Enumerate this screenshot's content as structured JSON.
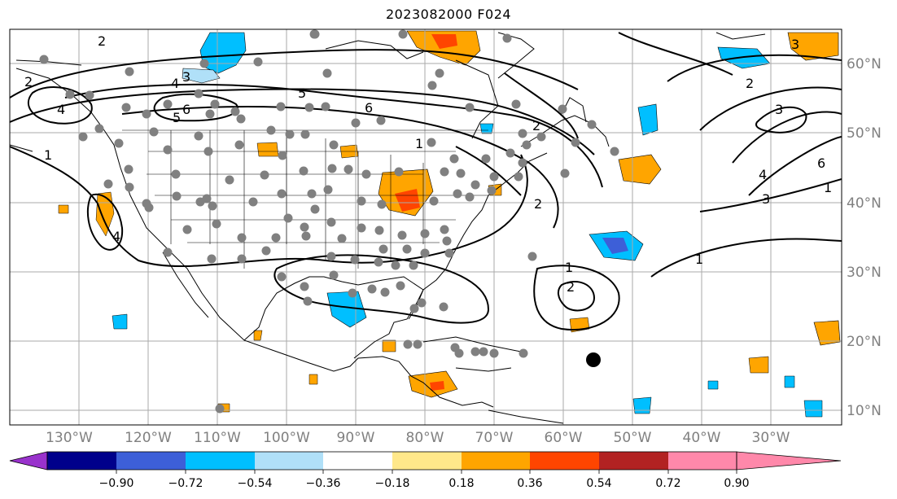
{
  "title": "2023082000 F024",
  "lon_labels": [
    "130°W",
    "120°W",
    "110°W",
    "100°W",
    "90°W",
    "80°W",
    "70°W",
    "60°W",
    "50°W",
    "40°W",
    "30°W"
  ],
  "lat_labels": [
    "60°N",
    "50°N",
    "40°N",
    "30°N",
    "20°N",
    "10°N"
  ],
  "colorbar": {
    "ticks": [
      "−0.90",
      "−0.72",
      "−0.54",
      "−0.36",
      "−0.18",
      "0.18",
      "0.36",
      "0.54",
      "0.72",
      "0.90"
    ],
    "colors": [
      "#9932cc",
      "#00008b",
      "#3d5fd8",
      "#00bfff",
      "#b0e0f8",
      "#ffffff",
      "#ffe88a",
      "#ffa500",
      "#ff4500",
      "#b22222",
      "#ff88aa"
    ]
  },
  "contour_labels": [
    "2",
    "3",
    "4",
    "5",
    "6",
    "4",
    "2",
    "5",
    "6",
    "1",
    "4",
    "1",
    "2",
    "2",
    "1",
    "2",
    "3",
    "2",
    "3",
    "4",
    "1",
    "6",
    "3",
    "1"
  ],
  "storm_marker": "tropical-system-marker"
}
